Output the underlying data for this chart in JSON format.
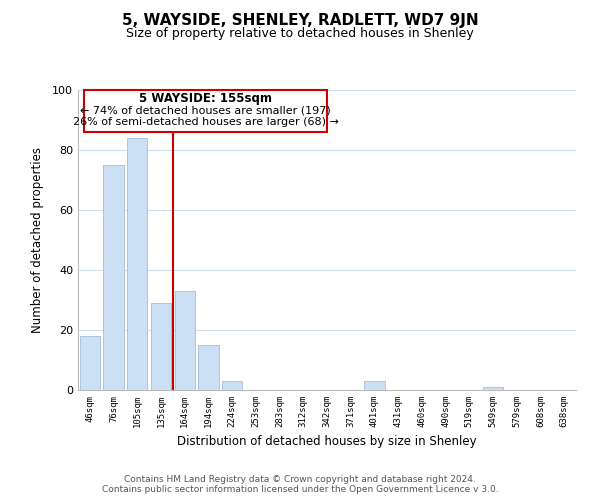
{
  "title": "5, WAYSIDE, SHENLEY, RADLETT, WD7 9JN",
  "subtitle": "Size of property relative to detached houses in Shenley",
  "xlabel": "Distribution of detached houses by size in Shenley",
  "ylabel": "Number of detached properties",
  "bar_labels": [
    "46sqm",
    "76sqm",
    "105sqm",
    "135sqm",
    "164sqm",
    "194sqm",
    "224sqm",
    "253sqm",
    "283sqm",
    "312sqm",
    "342sqm",
    "371sqm",
    "401sqm",
    "431sqm",
    "460sqm",
    "490sqm",
    "519sqm",
    "549sqm",
    "579sqm",
    "608sqm",
    "638sqm"
  ],
  "bar_values": [
    18,
    75,
    84,
    29,
    33,
    15,
    3,
    0,
    0,
    0,
    0,
    0,
    3,
    0,
    0,
    0,
    0,
    1,
    0,
    0,
    0
  ],
  "bar_color": "#cce0f5",
  "bar_edge_color": "#a0bfd8",
  "vline_color": "#cc0000",
  "ylim": [
    0,
    100
  ],
  "annotation_title": "5 WAYSIDE: 155sqm",
  "annotation_line1": "← 74% of detached houses are smaller (197)",
  "annotation_line2": "26% of semi-detached houses are larger (68) →",
  "annotation_box_color": "#ffffff",
  "annotation_box_edge": "#cc0000",
  "footer_line1": "Contains HM Land Registry data © Crown copyright and database right 2024.",
  "footer_line2": "Contains public sector information licensed under the Open Government Licence v 3.0.",
  "background_color": "#ffffff",
  "grid_color": "#ccdded"
}
